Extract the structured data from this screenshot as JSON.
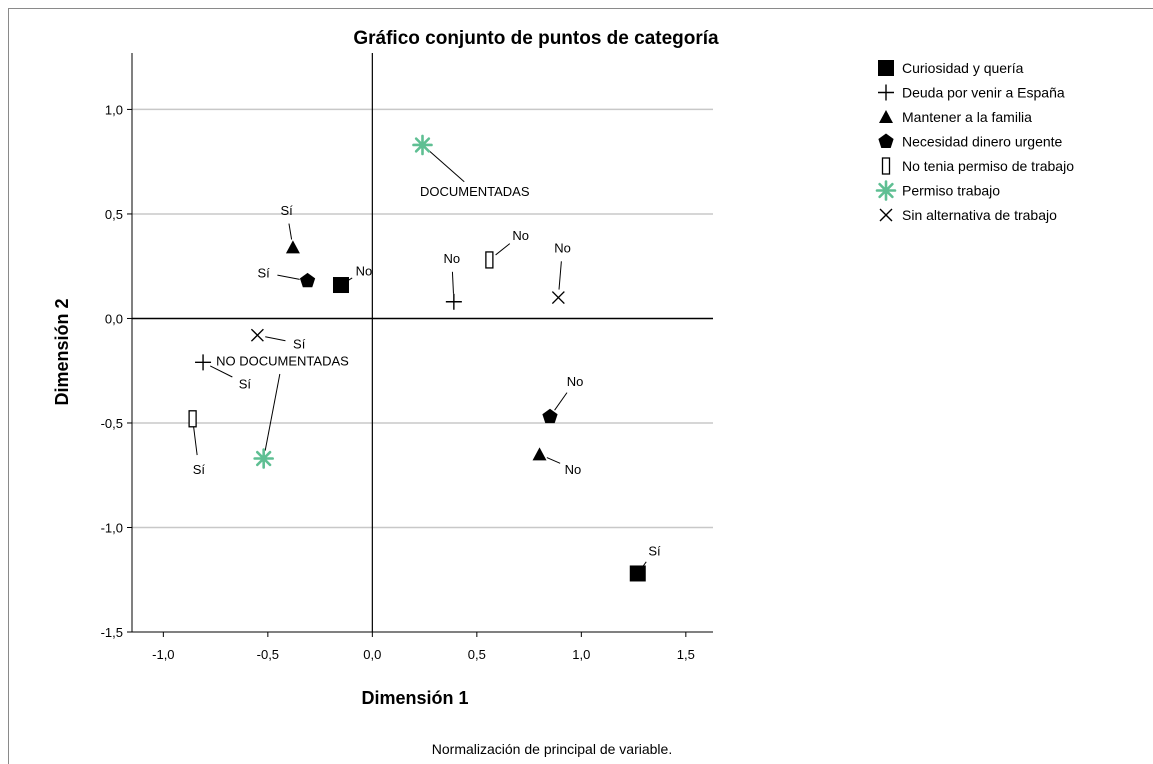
{
  "chart_data": {
    "type": "scatter",
    "title": "Gráfico conjunto de puntos de categoría",
    "xlabel": "Dimensión 1",
    "ylabel": "Dimensión 2",
    "footnote": "Normalización de principal de variable.",
    "xlim": [
      -1.15,
      1.63
    ],
    "ylim": [
      -1.5,
      1.27
    ],
    "xticks": [
      {
        "value": -1.0,
        "label": "-1,0"
      },
      {
        "value": -0.5,
        "label": "-0,5"
      },
      {
        "value": 0.0,
        "label": "0,0"
      },
      {
        "value": 0.5,
        "label": "0,5"
      },
      {
        "value": 1.0,
        "label": "1,0"
      },
      {
        "value": 1.5,
        "label": "1,5"
      }
    ],
    "yticks": [
      {
        "value": 1.0,
        "label": "1,0"
      },
      {
        "value": 0.5,
        "label": "0,5"
      },
      {
        "value": 0.0,
        "label": "0,0"
      },
      {
        "value": -0.5,
        "label": "-0,5"
      },
      {
        "value": -1.0,
        "label": "-1,0"
      },
      {
        "value": -1.5,
        "label": "-1,5"
      }
    ],
    "grid": "horizontal",
    "legend_position": "right",
    "series": [
      {
        "name": "Curiosidad y quería",
        "marker": "square",
        "color": "#000000",
        "points": [
          {
            "x": -0.15,
            "y": 0.16,
            "label": "No",
            "lx": -0.04,
            "ly": 0.23
          },
          {
            "x": 1.27,
            "y": -1.22,
            "label": "Sí",
            "lx": 1.35,
            "ly": -1.11
          }
        ]
      },
      {
        "name": "Deuda por venir a España",
        "marker": "plus",
        "color": "#000000",
        "points": [
          {
            "x": 0.39,
            "y": 0.08,
            "label": "No",
            "lx": 0.38,
            "ly": 0.29
          },
          {
            "x": -0.81,
            "y": -0.21,
            "label": "Sí",
            "lx": -0.61,
            "ly": -0.31
          }
        ]
      },
      {
        "name": "Mantener a la familia",
        "marker": "triangle",
        "color": "#000000",
        "points": [
          {
            "x": -0.38,
            "y": 0.34,
            "label": "Sí",
            "lx": -0.41,
            "ly": 0.52
          },
          {
            "x": 0.8,
            "y": -0.65,
            "label": "No",
            "lx": 0.96,
            "ly": -0.72
          }
        ]
      },
      {
        "name": "Necesidad dinero urgente",
        "marker": "pentagon",
        "color": "#000000",
        "points": [
          {
            "x": -0.31,
            "y": 0.18,
            "label": "Sí",
            "lx": -0.52,
            "ly": 0.22
          },
          {
            "x": 0.85,
            "y": -0.47,
            "label": "No",
            "lx": 0.97,
            "ly": -0.3
          }
        ]
      },
      {
        "name": "No tenia permiso de trabajo",
        "marker": "rect-open",
        "color": "#000000",
        "points": [
          {
            "x": 0.56,
            "y": 0.28,
            "label": "No",
            "lx": 0.71,
            "ly": 0.4
          },
          {
            "x": -0.86,
            "y": -0.48,
            "label": "Sí",
            "lx": -0.83,
            "ly": -0.72
          }
        ]
      },
      {
        "name": "Permiso trabajo",
        "marker": "star",
        "color": "#5fbf93",
        "points": [
          {
            "x": 0.24,
            "y": 0.83,
            "label": "DOCUMENTADAS",
            "lx": 0.49,
            "ly": 0.61
          },
          {
            "x": -0.52,
            "y": -0.67,
            "label": "NO DOCUMENTADAS",
            "lx": -0.43,
            "ly": -0.2
          }
        ]
      },
      {
        "name": "Sin alternativa de trabajo",
        "marker": "x",
        "color": "#000000",
        "points": [
          {
            "x": 0.89,
            "y": 0.1,
            "label": "No",
            "lx": 0.91,
            "ly": 0.34
          },
          {
            "x": -0.55,
            "y": -0.08,
            "label": "Sí",
            "lx": -0.35,
            "ly": -0.12
          }
        ]
      }
    ]
  }
}
